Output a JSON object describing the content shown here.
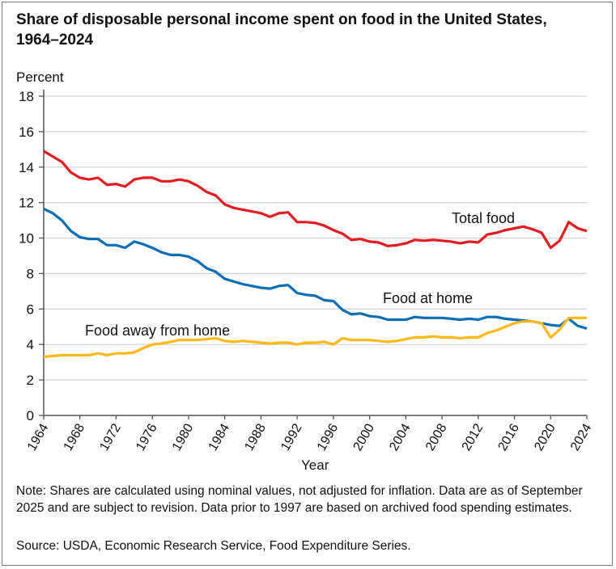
{
  "chart_data": {
    "type": "line",
    "title": "Share of disposable personal income spent on food in the United States, 1964–2024",
    "ylabel": "Percent",
    "xlabel": "Year",
    "ylim": [
      0,
      18
    ],
    "yticks": [
      0,
      2,
      4,
      6,
      8,
      10,
      12,
      14,
      16,
      18
    ],
    "xlim": [
      1964,
      2024
    ],
    "xticks": [
      1964,
      1968,
      1972,
      1976,
      1980,
      1984,
      1988,
      1992,
      1996,
      2000,
      2004,
      2008,
      2012,
      2016,
      2020,
      2024
    ],
    "grid": true,
    "legend": "inline labels",
    "x": [
      1964,
      1965,
      1966,
      1967,
      1968,
      1969,
      1970,
      1971,
      1972,
      1973,
      1974,
      1975,
      1976,
      1977,
      1978,
      1979,
      1980,
      1981,
      1982,
      1983,
      1984,
      1985,
      1986,
      1987,
      1988,
      1989,
      1990,
      1991,
      1992,
      1993,
      1994,
      1995,
      1996,
      1997,
      1998,
      1999,
      2000,
      2001,
      2002,
      2003,
      2004,
      2005,
      2006,
      2007,
      2008,
      2009,
      2010,
      2011,
      2012,
      2013,
      2014,
      2015,
      2016,
      2017,
      2018,
      2019,
      2020,
      2021,
      2022,
      2023,
      2024
    ],
    "series": [
      {
        "name": "Total food",
        "color": "#e31b23",
        "values": [
          14.9,
          14.6,
          14.3,
          13.7,
          13.4,
          13.3,
          13.4,
          13.0,
          13.05,
          12.9,
          13.3,
          13.4,
          13.4,
          13.2,
          13.2,
          13.3,
          13.2,
          12.95,
          12.6,
          12.4,
          11.9,
          11.7,
          11.6,
          11.5,
          11.4,
          11.2,
          11.4,
          11.45,
          10.9,
          10.9,
          10.85,
          10.7,
          10.45,
          10.25,
          9.9,
          9.95,
          9.8,
          9.75,
          9.55,
          9.6,
          9.7,
          9.9,
          9.85,
          9.9,
          9.85,
          9.8,
          9.7,
          9.8,
          9.75,
          10.2,
          10.3,
          10.45,
          10.55,
          10.65,
          10.5,
          10.3,
          9.45,
          9.85,
          10.9,
          10.55,
          10.4
        ]
      },
      {
        "name": "Food at home",
        "color": "#0d6eb5",
        "values": [
          11.65,
          11.4,
          11.0,
          10.4,
          10.05,
          9.95,
          9.95,
          9.6,
          9.6,
          9.45,
          9.8,
          9.65,
          9.45,
          9.2,
          9.05,
          9.05,
          8.95,
          8.7,
          8.3,
          8.1,
          7.7,
          7.55,
          7.4,
          7.3,
          7.2,
          7.15,
          7.3,
          7.35,
          6.9,
          6.8,
          6.75,
          6.5,
          6.45,
          5.95,
          5.7,
          5.75,
          5.6,
          5.55,
          5.4,
          5.4,
          5.4,
          5.55,
          5.5,
          5.5,
          5.5,
          5.45,
          5.4,
          5.45,
          5.4,
          5.55,
          5.55,
          5.45,
          5.4,
          5.35,
          5.3,
          5.2,
          5.1,
          5.05,
          5.45,
          5.05,
          4.9
        ]
      },
      {
        "name": "Food away from home",
        "color": "#fbb91a",
        "values": [
          3.3,
          3.35,
          3.4,
          3.4,
          3.4,
          3.4,
          3.5,
          3.4,
          3.5,
          3.5,
          3.55,
          3.8,
          4.0,
          4.05,
          4.15,
          4.25,
          4.25,
          4.25,
          4.3,
          4.35,
          4.2,
          4.15,
          4.2,
          4.15,
          4.1,
          4.05,
          4.1,
          4.1,
          4.0,
          4.1,
          4.1,
          4.15,
          4.0,
          4.35,
          4.25,
          4.25,
          4.25,
          4.2,
          4.15,
          4.2,
          4.3,
          4.4,
          4.4,
          4.45,
          4.4,
          4.4,
          4.35,
          4.4,
          4.4,
          4.65,
          4.8,
          5.0,
          5.2,
          5.3,
          5.3,
          5.2,
          4.4,
          4.85,
          5.5,
          5.5,
          5.5
        ]
      }
    ]
  },
  "note": "Note: Shares are calculated using nominal values, not adjusted for inflation. Data are as of September 2025 and are subject to revision. Data prior to 1997 are based on archived food spending estimates.",
  "source": "Source: USDA, Economic Research Service, Food Expenditure Series."
}
